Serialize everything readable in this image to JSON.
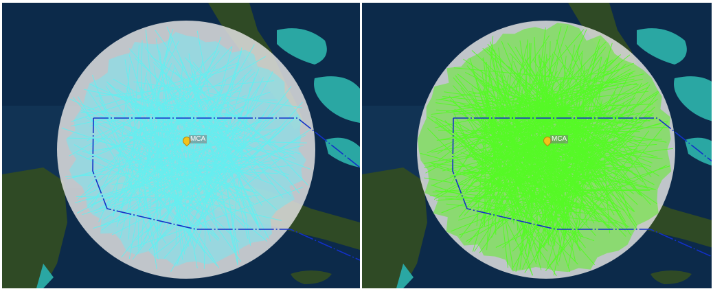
{
  "panels": [
    {
      "id": "left",
      "station_label": "MCA",
      "coverage_color": "#5ef2f2",
      "coverage_fill": "rgba(120,230,240,0.55)"
    },
    {
      "id": "right",
      "station_label": "MCA",
      "coverage_color": "#4dff1a",
      "coverage_fill": "rgba(95,235,40,0.55)"
    }
  ],
  "colors": {
    "ocean": "#0c2a4a",
    "shallow": "#2aa7a3",
    "land": "#2f4a25",
    "range_ring": "rgba(225,225,225,0.85)",
    "boundary": "#1230c8"
  },
  "icons": {
    "station_pin": "map-pin-icon"
  }
}
